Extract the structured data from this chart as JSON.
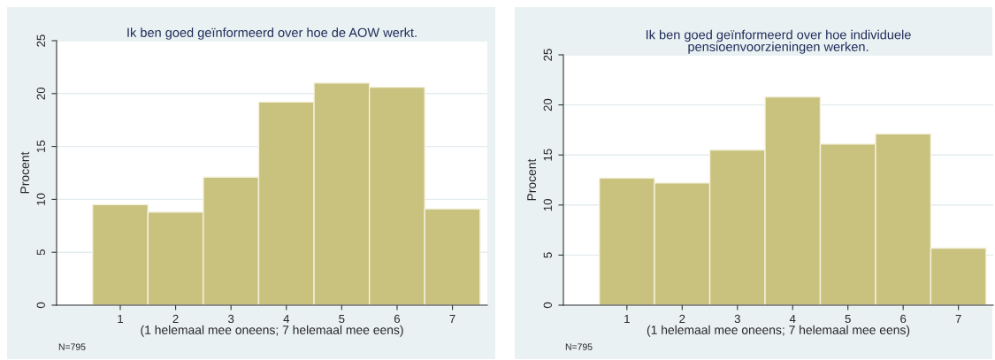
{
  "chart_data": [
    {
      "type": "histogram",
      "title": "Ik ben goed geïnformeerd over hoe de AOW werkt.",
      "xlabel": "(1 helemaal mee oneens; 7 helemaal mee eens)",
      "ylabel": "Procent",
      "annotations": [
        "N=795"
      ],
      "bins": [
        0.5,
        1.5,
        2.5,
        3.5,
        4.5,
        5.5,
        6.5,
        7.5
      ],
      "values": [
        9.5,
        8.8,
        12.1,
        19.2,
        21.0,
        20.6,
        9.1
      ],
      "color": "#c9c27f",
      "xlim": [
        -0.15,
        7.63
      ],
      "xticks": [
        1,
        2,
        3,
        4,
        5,
        6,
        7
      ],
      "ylim": [
        0,
        25
      ],
      "yticks": [
        0,
        5,
        10,
        15,
        20,
        25
      ],
      "grid": "y",
      "legend": false
    },
    {
      "type": "histogram",
      "title": "Ik ben goed geïnformeerd over hoe individuele\npensioenvoorzieningen werken.",
      "xlabel": "(1 helemaal mee oneens; 7 helemaal mee eens)",
      "ylabel": "Procent",
      "annotations": [
        "N=795"
      ],
      "bins": [
        0.5,
        1.5,
        2.5,
        3.5,
        4.5,
        5.5,
        6.5,
        7.5
      ],
      "values": [
        12.7,
        12.2,
        15.5,
        20.8,
        16.1,
        17.1,
        5.7
      ],
      "color": "#c9c27f",
      "xlim": [
        -0.15,
        7.63
      ],
      "xticks": [
        1,
        2,
        3,
        4,
        5,
        6,
        7
      ],
      "ylim": [
        0,
        25
      ],
      "yticks": [
        0,
        5,
        10,
        15,
        20,
        25
      ],
      "grid": "y",
      "legend": false
    }
  ]
}
